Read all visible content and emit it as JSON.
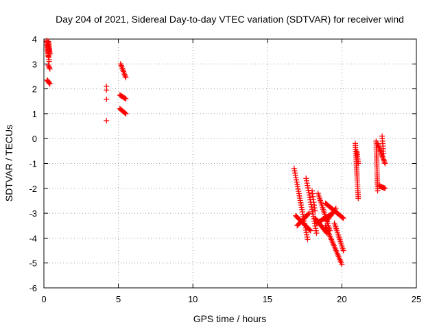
{
  "chart_data": {
    "type": "scatter",
    "title": "Day 204 of 2021, Sidereal Day-to-day VTEC variation (SDTVAR) for receiver wind",
    "xlabel": "GPS time / hours",
    "ylabel": "SDTVAR / TECUs",
    "xlim": [
      0,
      25
    ],
    "ylim": [
      -6,
      4
    ],
    "xticks": [
      "0",
      "5",
      "10",
      "15",
      "20",
      "25"
    ],
    "yticks": [
      "-6",
      "-5",
      "-4",
      "-3",
      "-2",
      "-1",
      "0",
      "1",
      "2",
      "3",
      "4"
    ],
    "grid": true,
    "marker": "plus",
    "color": "#ff0000",
    "segments": [
      {
        "x0": 0.2,
        "y0": 3.95,
        "x1": 0.3,
        "y1": 3.3,
        "n": 14
      },
      {
        "x0": 0.3,
        "y0": 3.9,
        "x1": 0.4,
        "y1": 3.4,
        "n": 12
      },
      {
        "x0": 0.25,
        "y0": 3.8,
        "x1": 0.35,
        "y1": 3.1,
        "n": 10
      },
      {
        "x0": 0.3,
        "y0": 2.95,
        "x1": 0.4,
        "y1": 2.8,
        "n": 4
      },
      {
        "x0": 0.22,
        "y0": 2.35,
        "x1": 0.4,
        "y1": 2.2,
        "n": 6
      },
      {
        "x0": 4.2,
        "y0": 2.1,
        "x1": 4.2,
        "y1": 1.95,
        "n": 2
      },
      {
        "x0": 4.2,
        "y0": 1.58,
        "x1": 4.2,
        "y1": 1.58,
        "n": 1
      },
      {
        "x0": 4.2,
        "y0": 0.72,
        "x1": 4.2,
        "y1": 0.72,
        "n": 1
      },
      {
        "x0": 5.15,
        "y0": 3.0,
        "x1": 5.5,
        "y1": 2.45,
        "n": 10
      },
      {
        "x0": 5.1,
        "y0": 1.75,
        "x1": 5.5,
        "y1": 1.6,
        "n": 8
      },
      {
        "x0": 5.1,
        "y0": 1.2,
        "x1": 5.5,
        "y1": 1.0,
        "n": 8
      },
      {
        "x0": 16.8,
        "y0": -1.2,
        "x1": 17.7,
        "y1": -4.05,
        "n": 32
      },
      {
        "x0": 16.9,
        "y0": -3.1,
        "x1": 17.9,
        "y1": -3.7,
        "n": 20
      },
      {
        "x0": 17.0,
        "y0": -3.5,
        "x1": 17.8,
        "y1": -3.0,
        "n": 14
      },
      {
        "x0": 17.6,
        "y0": -1.6,
        "x1": 18.3,
        "y1": -3.8,
        "n": 24
      },
      {
        "x0": 18.0,
        "y0": -2.1,
        "x1": 18.2,
        "y1": -2.9,
        "n": 8
      },
      {
        "x0": 18.4,
        "y0": -2.2,
        "x1": 19.2,
        "y1": -3.7,
        "n": 22
      },
      {
        "x0": 18.3,
        "y0": -3.4,
        "x1": 19.4,
        "y1": -3.0,
        "n": 18
      },
      {
        "x0": 18.2,
        "y0": -3.2,
        "x1": 19.0,
        "y1": -3.8,
        "n": 16
      },
      {
        "x0": 18.9,
        "y0": -2.6,
        "x1": 20.1,
        "y1": -3.2,
        "n": 22
      },
      {
        "x0": 18.9,
        "y0": -3.5,
        "x1": 20.0,
        "y1": -5.05,
        "n": 26
      },
      {
        "x0": 19.5,
        "y0": -3.4,
        "x1": 20.1,
        "y1": -4.5,
        "n": 16
      },
      {
        "x0": 19.0,
        "y0": -3.3,
        "x1": 19.6,
        "y1": -2.8,
        "n": 10
      },
      {
        "x0": 20.9,
        "y0": -0.2,
        "x1": 21.1,
        "y1": -2.4,
        "n": 28
      },
      {
        "x0": 21.0,
        "y0": -0.5,
        "x1": 21.1,
        "y1": -1.0,
        "n": 8
      },
      {
        "x0": 22.3,
        "y0": -0.1,
        "x1": 22.4,
        "y1": -2.1,
        "n": 26
      },
      {
        "x0": 22.4,
        "y0": -0.2,
        "x1": 22.9,
        "y1": -1.0,
        "n": 16
      },
      {
        "x0": 22.5,
        "y0": -1.9,
        "x1": 22.9,
        "y1": -2.0,
        "n": 8
      },
      {
        "x0": 22.7,
        "y0": 0.1,
        "x1": 22.8,
        "y1": -0.6,
        "n": 8
      }
    ]
  }
}
